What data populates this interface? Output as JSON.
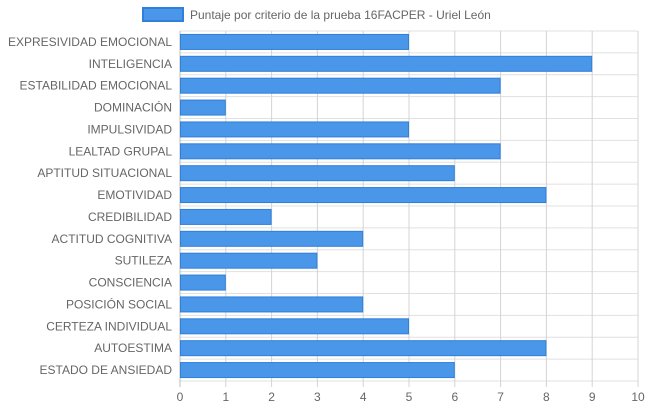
{
  "chart_data": {
    "type": "bar",
    "orientation": "horizontal",
    "categories": [
      "EXPRESIVIDAD EMOCIONAL",
      "INTELIGENCIA",
      "ESTABILIDAD EMOCIONAL",
      "DOMINACIÓN",
      "IMPULSIVIDAD",
      "LEALTAD GRUPAL",
      "APTITUD SITUACIONAL",
      "EMOTIVIDAD",
      "CREDIBILIDAD",
      "ACTITUD COGNITIVA",
      "SUTILEZA",
      "CONSCIENCIA",
      "POSICIÓN SOCIAL",
      "CERTEZA INDIVIDUAL",
      "AUTOESTIMA",
      "ESTADO DE ANSIEDAD"
    ],
    "series": [
      {
        "name": "Puntaje por criterio de la prueba 16FACPER - Uriel León",
        "values": [
          5,
          9,
          7,
          1,
          5,
          7,
          6,
          8,
          2,
          4,
          3,
          1,
          4,
          5,
          8,
          6
        ]
      }
    ],
    "xlim": [
      0,
      10
    ],
    "xticks": [
      "0",
      "1",
      "2",
      "3",
      "4",
      "5",
      "6",
      "7",
      "8",
      "9",
      "10"
    ],
    "grid": true,
    "legend_position": "top"
  },
  "colors": {
    "bar_fill": "#4a96e9",
    "bar_border": "#2f7fdb",
    "grid": "#e0e0e0",
    "grid_vertical": "#d4d4d4",
    "axis": "#bdbdbd",
    "text": "#666666"
  }
}
